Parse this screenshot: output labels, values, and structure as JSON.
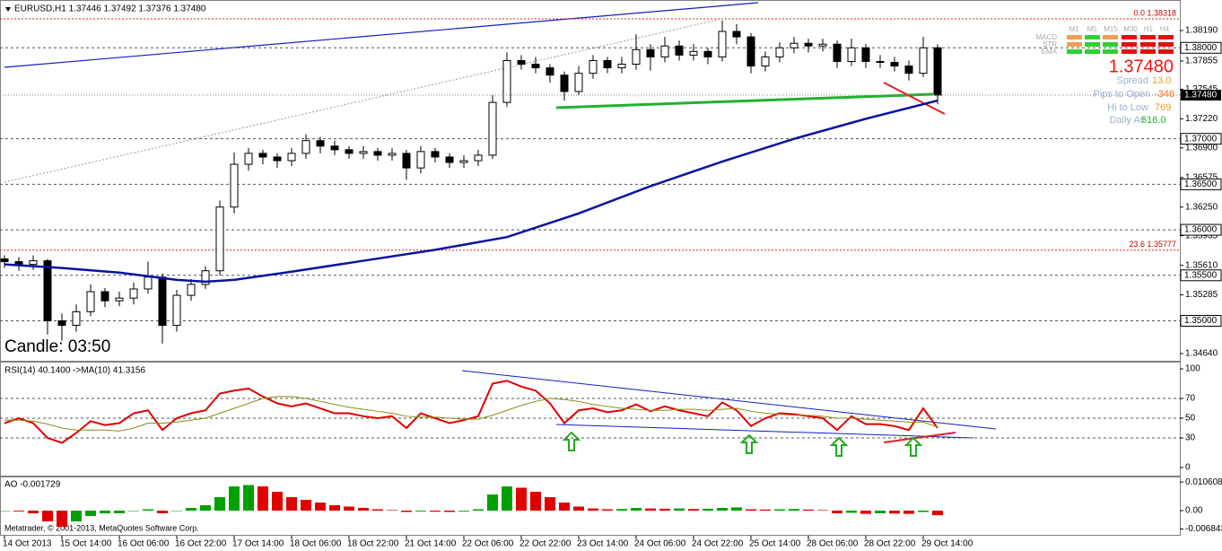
{
  "chart_data": [
    {
      "type": "candlestick",
      "title": "EURUSD,H1  1.37446 1.37492 1.37376 1.37480",
      "x": [
        0,
        4,
        8,
        12,
        16,
        20,
        24,
        28,
        32,
        36,
        40,
        44,
        48,
        52,
        56,
        60,
        64,
        68,
        72,
        76,
        80,
        84,
        88,
        92,
        96,
        100,
        104,
        108,
        112,
        116,
        120,
        124,
        128,
        132,
        136,
        140,
        144,
        148,
        152,
        156,
        160,
        164,
        168,
        172,
        176,
        180,
        184,
        188,
        192,
        196,
        200,
        204,
        208,
        212,
        216,
        220,
        224,
        228,
        232,
        236,
        240,
        244,
        248,
        252,
        256,
        260
      ],
      "open": [
        1.3568,
        1.3565,
        1.3562,
        1.3566,
        1.35,
        1.3495,
        1.351,
        1.3532,
        1.3522,
        1.3525,
        1.3535,
        1.3548,
        1.3495,
        1.3528,
        1.354,
        1.3555,
        1.3625,
        1.3672,
        1.3684,
        1.368,
        1.3676,
        1.3684,
        1.3698,
        1.3692,
        1.3688,
        1.3684,
        1.3686,
        1.3682,
        1.3684,
        1.3668,
        1.3686,
        1.368,
        1.3674,
        1.3676,
        1.3682,
        1.374,
        1.3786,
        1.3782,
        1.3778,
        1.377,
        1.3752,
        1.3772,
        1.3786,
        1.3778,
        1.3782,
        1.3798,
        1.379,
        1.3802,
        1.3792,
        1.3796,
        1.379,
        1.3818,
        1.3812,
        1.378,
        1.379,
        1.38,
        1.3805,
        1.3802,
        1.3804,
        1.3785,
        1.38,
        1.3785,
        1.3784,
        1.378,
        1.3772,
        1.38
      ],
      "high": [
        1.3572,
        1.357,
        1.3572,
        1.3568,
        1.3508,
        1.3518,
        1.354,
        1.3536,
        1.3532,
        1.3542,
        1.3565,
        1.3552,
        1.3534,
        1.3546,
        1.356,
        1.3632,
        1.3685,
        1.369,
        1.3688,
        1.3684,
        1.369,
        1.3705,
        1.3702,
        1.3698,
        1.3692,
        1.3692,
        1.369,
        1.369,
        1.3688,
        1.3692,
        1.369,
        1.3684,
        1.3682,
        1.3688,
        1.3748,
        1.3795,
        1.3792,
        1.379,
        1.3782,
        1.3774,
        1.378,
        1.3792,
        1.379,
        1.379,
        1.3815,
        1.3804,
        1.3812,
        1.3808,
        1.3804,
        1.38,
        1.383,
        1.3826,
        1.3816,
        1.3796,
        1.3806,
        1.3812,
        1.381,
        1.381,
        1.3808,
        1.381,
        1.3804,
        1.3792,
        1.379,
        1.3786,
        1.3812,
        1.3804
      ],
      "low": [
        1.3558,
        1.3555,
        1.3556,
        1.3485,
        1.3478,
        1.3488,
        1.3505,
        1.3515,
        1.3516,
        1.3518,
        1.353,
        1.3475,
        1.3488,
        1.3522,
        1.3535,
        1.355,
        1.3618,
        1.3665,
        1.3672,
        1.3668,
        1.367,
        1.3678,
        1.3684,
        1.3682,
        1.3678,
        1.3678,
        1.3676,
        1.3676,
        1.3655,
        1.3662,
        1.3674,
        1.3668,
        1.3668,
        1.367,
        1.3678,
        1.3735,
        1.3776,
        1.3772,
        1.3762,
        1.3742,
        1.3748,
        1.3766,
        1.3772,
        1.3772,
        1.3776,
        1.3775,
        1.3784,
        1.3786,
        1.3786,
        1.3782,
        1.3785,
        1.3804,
        1.3772,
        1.3774,
        1.3784,
        1.3794,
        1.3795,
        1.3796,
        1.3778,
        1.378,
        1.3778,
        1.3778,
        1.3774,
        1.3764,
        1.3768,
        1.3738
      ],
      "close": [
        1.3565,
        1.3562,
        1.3566,
        1.35,
        1.3495,
        1.351,
        1.3532,
        1.3522,
        1.3525,
        1.3535,
        1.3548,
        1.3495,
        1.3528,
        1.354,
        1.3555,
        1.3625,
        1.3672,
        1.3684,
        1.368,
        1.3676,
        1.3684,
        1.3698,
        1.3692,
        1.3688,
        1.3684,
        1.3686,
        1.3682,
        1.3684,
        1.3668,
        1.3686,
        1.368,
        1.3674,
        1.3676,
        1.3682,
        1.374,
        1.3786,
        1.3782,
        1.3778,
        1.377,
        1.3752,
        1.3772,
        1.3786,
        1.3778,
        1.3782,
        1.3798,
        1.379,
        1.3802,
        1.3792,
        1.3796,
        1.379,
        1.3818,
        1.3812,
        1.378,
        1.379,
        1.38,
        1.3805,
        1.3802,
        1.3804,
        1.3785,
        1.38,
        1.3785,
        1.3784,
        1.378,
        1.3772,
        1.38,
        1.3748
      ],
      "up_color": "#ffffff",
      "down_color": "#000000",
      "ma": {
        "color": "#0a14a0",
        "x": [
          0,
          16,
          32,
          48,
          56,
          64,
          80,
          100,
          120,
          140,
          160,
          180,
          200,
          220,
          240,
          260
        ],
        "values": [
          1.3562,
          1.3558,
          1.3553,
          1.3545,
          1.3543,
          1.3545,
          1.3554,
          1.3566,
          1.3578,
          1.3592,
          1.3618,
          1.3648,
          1.3675,
          1.37,
          1.3722,
          1.3742
        ]
      },
      "xlim": [
        -1.25,
        327.5
      ],
      "xticks": [
        {
          "value": 0,
          "label": "14 Oct 2013"
        },
        {
          "value": 16,
          "label": "15 Oct 14:00"
        },
        {
          "value": 32,
          "label": "16 Oct 06:00"
        },
        {
          "value": 48,
          "label": "16 Oct 22:00"
        },
        {
          "value": 64,
          "label": "17 Oct 14:00"
        },
        {
          "value": 80,
          "label": "18 Oct 06:00"
        },
        {
          "value": 96,
          "label": "18 Oct 22:00"
        },
        {
          "value": 112,
          "label": "21 Oct 14:00"
        },
        {
          "value": 128,
          "label": "22 Oct 06:00"
        },
        {
          "value": 144,
          "label": "22 Oct 22:00"
        },
        {
          "value": 160,
          "label": "23 Oct 14:00"
        },
        {
          "value": 176,
          "label": "24 Oct 06:00"
        },
        {
          "value": 192,
          "label": "24 Oct 22:00"
        },
        {
          "value": 208,
          "label": "25 Oct 14:00"
        },
        {
          "value": 224,
          "label": "28 Oct 06:00"
        },
        {
          "value": 240,
          "label": "28 Oct 22:00"
        },
        {
          "value": 256,
          "label": "29 Oct 14:00"
        }
      ],
      "ylim": [
        1.34561,
        1.38486
      ],
      "yticks": [
        {
          "value": 1.3819,
          "label": "1.38190"
        },
        {
          "value": 1.37855,
          "label": "1.37855"
        },
        {
          "value": 1.37545,
          "label": "1.37545"
        },
        {
          "value": 1.3722,
          "label": "1.37220"
        },
        {
          "value": 1.369,
          "label": "1.36900"
        },
        {
          "value": 1.36575,
          "label": "1.36575"
        },
        {
          "value": 1.3625,
          "label": "1.36250"
        },
        {
          "value": 1.35935,
          "label": "1.35935"
        },
        {
          "value": 1.3561,
          "label": "1.35610"
        },
        {
          "value": 1.35285,
          "label": "1.35285"
        },
        {
          "value": 1.3496,
          "label": "1.34960"
        },
        {
          "value": 1.3464,
          "label": "1.34640"
        }
      ],
      "levels": [
        {
          "value": 1.38,
          "label": "1.38000"
        },
        {
          "value": 1.37,
          "label": "1.37000"
        },
        {
          "value": 1.365,
          "label": "1.36500"
        },
        {
          "value": 1.36,
          "label": "1.36000"
        },
        {
          "value": 1.355,
          "label": "1.35500"
        },
        {
          "value": 1.35,
          "label": "1.35000"
        }
      ],
      "fib_levels": [
        {
          "value": 1.38318,
          "label": "0.0 1.38318"
        },
        {
          "value": 1.35777,
          "label": "23.6 1.35777"
        }
      ],
      "last_price": {
        "value": 1.3748,
        "label": "1.37480"
      },
      "candle_timer": "Candle:  03:50"
    },
    {
      "type": "line",
      "title": "RSI(14) 40.1400  ->MA(10) 41.3156",
      "x": [
        0,
        4,
        8,
        12,
        16,
        20,
        24,
        28,
        32,
        36,
        40,
        44,
        48,
        52,
        56,
        60,
        64,
        68,
        72,
        76,
        80,
        84,
        88,
        92,
        96,
        100,
        104,
        108,
        112,
        116,
        120,
        124,
        128,
        132,
        136,
        140,
        144,
        148,
        152,
        156,
        160,
        164,
        168,
        172,
        176,
        180,
        184,
        188,
        192,
        196,
        200,
        204,
        208,
        212,
        216,
        220,
        224,
        228,
        232,
        236,
        240,
        244,
        248,
        252,
        256,
        260
      ],
      "xlim": [
        -1.25,
        327.5
      ],
      "series": [
        {
          "color": "#e00000",
          "values": [
            45,
            50,
            45,
            30,
            25,
            35,
            47,
            43,
            45,
            55,
            58,
            38,
            50,
            55,
            58,
            75,
            78,
            80,
            72,
            65,
            62,
            65,
            60,
            55,
            55,
            52,
            50,
            52,
            40,
            55,
            50,
            45,
            48,
            52,
            85,
            88,
            82,
            78,
            65,
            45,
            58,
            60,
            56,
            58,
            64,
            57,
            62,
            58,
            55,
            52,
            66,
            58,
            42,
            50,
            55,
            54,
            52,
            50,
            38,
            52,
            44,
            44,
            42,
            38,
            60,
            40
          ]
        },
        {
          "color": "#8c8c14",
          "values": [
            48,
            48,
            47,
            44,
            40,
            38,
            38,
            38,
            37,
            40,
            45,
            45,
            46,
            48,
            50,
            55,
            60,
            65,
            70,
            72,
            72,
            70,
            67,
            64,
            61,
            59,
            57,
            55,
            52,
            51,
            51,
            50,
            49,
            49,
            53,
            58,
            63,
            67,
            70,
            69,
            67,
            64,
            62,
            60,
            59,
            58,
            58,
            59,
            59,
            58,
            59,
            60,
            57,
            55,
            54,
            53,
            53,
            52,
            50,
            50,
            49,
            48,
            47,
            46,
            46,
            41
          ]
        }
      ],
      "ylim": [
        -8.2,
        106.4
      ],
      "yticks": [
        0,
        30,
        50,
        70,
        100
      ],
      "dashed_levels": [
        30,
        50,
        70
      ]
    },
    {
      "type": "bar",
      "title": "AO -0.001729",
      "x": [
        0,
        4,
        8,
        12,
        16,
        20,
        24,
        28,
        32,
        36,
        40,
        44,
        48,
        52,
        56,
        60,
        64,
        68,
        72,
        76,
        80,
        84,
        88,
        92,
        96,
        100,
        104,
        108,
        112,
        116,
        120,
        124,
        128,
        132,
        136,
        140,
        144,
        148,
        152,
        156,
        160,
        164,
        168,
        172,
        176,
        180,
        184,
        188,
        192,
        196,
        200,
        204,
        208,
        212,
        216,
        220,
        224,
        228,
        232,
        236,
        240,
        244,
        248,
        252,
        256,
        260
      ],
      "xlim": [
        -1.25,
        327.5
      ],
      "values": [
        0.0,
        -0.0003,
        -0.001,
        -0.004,
        -0.006,
        -0.004,
        -0.002,
        -0.001,
        -0.001,
        0.0,
        0.0005,
        -0.001,
        0.0,
        0.001,
        0.002,
        0.005,
        0.009,
        0.0095,
        0.009,
        0.007,
        0.005,
        0.004,
        0.003,
        0.002,
        0.0015,
        0.001,
        0.0005,
        0.0002,
        -0.0005,
        -0.0003,
        -0.0004,
        -0.0005,
        -0.0003,
        0.0005,
        0.006,
        0.009,
        0.0085,
        0.007,
        0.005,
        0.003,
        0.0015,
        0.0008,
        0.0005,
        0.0006,
        0.001,
        0.0008,
        0.0007,
        0.0008,
        0.0006,
        0.0007,
        0.001,
        0.0012,
        0.0005,
        0.0004,
        0.0005,
        0.0006,
        0.0004,
        0.0002,
        -0.001,
        -0.0008,
        -0.0012,
        -0.001,
        -0.0011,
        -0.0012,
        -0.0005,
        -0.0017
      ],
      "up_color": "#00a000",
      "down_color": "#e00000",
      "ylim": [
        -0.009,
        0.01233
      ],
      "yticks": [
        0.010608,
        {
          "value": 0,
          "label": "0.00"
        },
        -0.006843
      ]
    }
  ],
  "indicator_panel": {
    "labels": [
      "MACD",
      "STR",
      "EMA"
    ],
    "timeframes": [
      "M1",
      "M5",
      "M15",
      "M30",
      "H1",
      "H4"
    ],
    "price": "1.37480",
    "stats": [
      {
        "label": "Spread",
        "value": "13.0"
      },
      {
        "label": "Pips to Open",
        "value": "-346"
      },
      {
        "label": "Hi to Low",
        "value": "769"
      },
      {
        "label": "Daily Av",
        "value": "516.0"
      }
    ]
  },
  "footer": "Metatrader, © 2001-2013, MetaQuotes Software Corp."
}
